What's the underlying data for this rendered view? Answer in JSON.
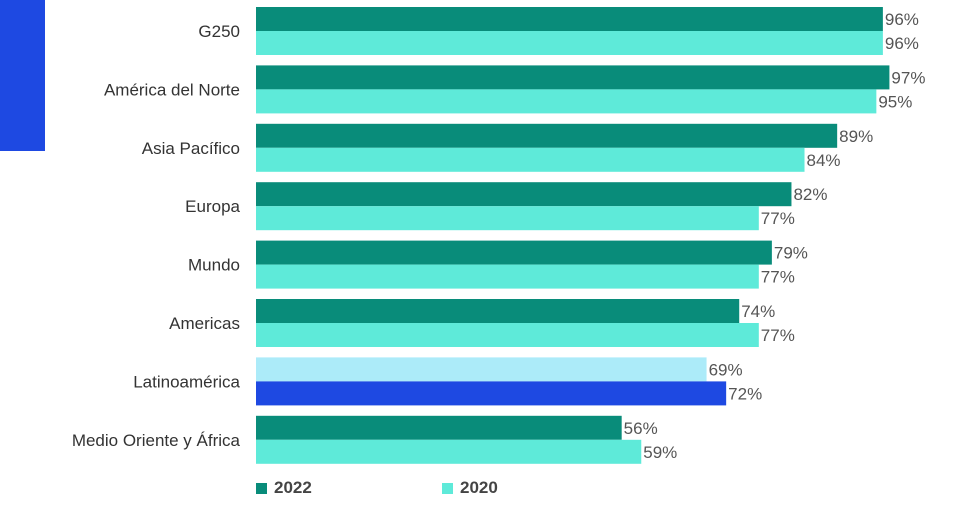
{
  "colors": {
    "accent_block": "#1e49e2",
    "series_2022": "#098c7a",
    "series_2020": "#5eead9",
    "highlight_2022": "#acebf9",
    "highlight_2020": "#1e49e2"
  },
  "legend": {
    "label_2022": "2022",
    "label_2020": "2020"
  },
  "chart_data": {
    "type": "bar",
    "orientation": "horizontal",
    "categories": [
      "G250",
      "América del Norte",
      "Asia Pacífico",
      "Europa",
      "Mundo",
      "Americas",
      "Latinoamérica",
      "Medio Oriente y África"
    ],
    "series": [
      {
        "name": "2022",
        "values": [
          96,
          97,
          89,
          82,
          79,
          74,
          69,
          56
        ]
      },
      {
        "name": "2020",
        "values": [
          96,
          95,
          84,
          77,
          77,
          77,
          72,
          59
        ]
      }
    ],
    "value_labels": [
      [
        "96%",
        "97%",
        "89%",
        "82%",
        "79%",
        "74%",
        "69%",
        "56%"
      ],
      [
        "96%",
        "95%",
        "84%",
        "77%",
        "77%",
        "77%",
        "72%",
        "59%"
      ]
    ],
    "highlighted_category": "Latinoamérica",
    "xlim": [
      0,
      100
    ],
    "legend_position": "bottom-left",
    "grid": false
  }
}
